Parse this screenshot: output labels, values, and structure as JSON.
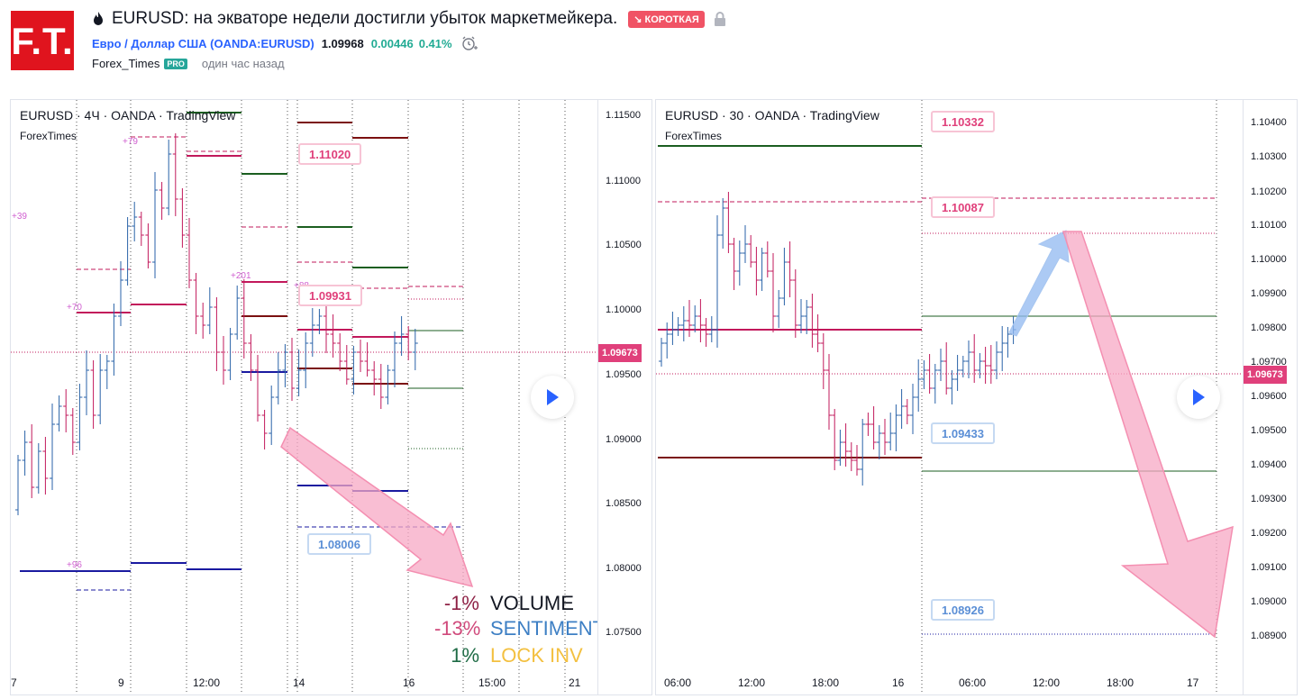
{
  "header": {
    "logo_text": "F.T.",
    "title": "EURUSD: на экваторе недели достигли убыток маркетмейкера.",
    "badge": "↘ КОРОТКАЯ",
    "symbol_link": "Евро / Доллар США (OANDA:EURUSD)",
    "price": "1.09968",
    "change": "0.00446",
    "change_pct": "0.41%",
    "author": "Forex_Times",
    "pro_badge": "PRO",
    "published": "один час назад"
  },
  "left_chart": {
    "title": "EURUSD · 4Ч · OANDA · TradingView",
    "subtitle": "ForexTimes",
    "axis_labels": [
      "1.11500",
      "1.11000",
      "1.10500",
      "1.10000",
      "1.09500",
      "1.09000",
      "1.08500",
      "1.08000",
      "1.07500"
    ],
    "price_tag": "1.09673",
    "x_labels": [
      "7",
      "9",
      "12:00",
      "14",
      "16",
      "15:00",
      "21"
    ],
    "callouts": [
      "1.11020",
      "1.09931",
      "1.08006"
    ],
    "small_labels": [
      "+79",
      "+39",
      "+70",
      "+201",
      "+88",
      "+96"
    ],
    "stats": [
      {
        "value": "-1%",
        "label": "VOLUME"
      },
      {
        "value": "-13%",
        "label": "SENTIMENT"
      },
      {
        "value": "1%",
        "label": "LOCK INV"
      }
    ]
  },
  "right_chart": {
    "title": "EURUSD · 30 · OANDA · TradingView",
    "subtitle": "ForexTimes",
    "axis_labels": [
      "1.10400",
      "1.10300",
      "1.10200",
      "1.10100",
      "1.10000",
      "1.09900",
      "1.09800",
      "1.09700",
      "1.09600",
      "1.09500",
      "1.09400",
      "1.09300",
      "1.09200",
      "1.09100",
      "1.09000",
      "1.08900"
    ],
    "price_tag": "1.09673",
    "x_labels": [
      "06:00",
      "12:00",
      "18:00",
      "16",
      "06:00",
      "12:00",
      "18:00",
      "17"
    ],
    "callouts": [
      "1.10332",
      "1.10087",
      "1.09433",
      "1.08926"
    ]
  },
  "colors": {
    "up": "#2962a8",
    "down": "#c2185b",
    "arrow_pink": "#f48fb1",
    "arrow_blue": "#90b8f0",
    "tag": "#e0407b"
  }
}
